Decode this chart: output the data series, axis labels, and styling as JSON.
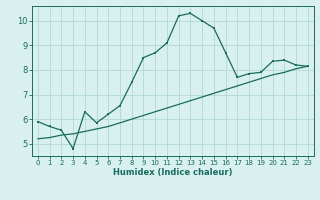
{
  "xlabel": "Humidex (Indice chaleur)",
  "bg_color": "#d8f0ee",
  "grid_color": "#b0d8d4",
  "line_color": "#1a6b60",
  "xlim": [
    -0.5,
    23.5
  ],
  "ylim": [
    4.5,
    10.6
  ],
  "xticks": [
    0,
    1,
    2,
    3,
    4,
    5,
    6,
    7,
    8,
    9,
    10,
    11,
    12,
    13,
    14,
    15,
    16,
    17,
    18,
    19,
    20,
    21,
    22,
    23
  ],
  "yticks": [
    5,
    6,
    7,
    8,
    9,
    10
  ],
  "curve1_x": [
    0,
    1,
    2,
    3,
    4,
    5,
    6,
    7,
    8,
    9,
    10,
    11,
    12,
    13,
    14,
    15,
    16,
    17,
    18,
    19,
    20,
    21,
    22,
    23
  ],
  "curve1_y": [
    5.9,
    5.7,
    5.55,
    4.8,
    6.3,
    5.85,
    6.2,
    6.55,
    7.5,
    8.5,
    8.7,
    9.1,
    10.2,
    10.3,
    10.0,
    9.7,
    8.7,
    7.7,
    7.85,
    7.9,
    8.35,
    8.4,
    8.2,
    8.15
  ],
  "curve2_x": [
    0,
    1,
    2,
    3,
    4,
    5,
    6,
    7,
    8,
    9,
    10,
    11,
    12,
    13,
    14,
    15,
    16,
    17,
    18,
    19,
    20,
    21,
    22,
    23
  ],
  "curve2_y": [
    5.2,
    5.25,
    5.35,
    5.4,
    5.5,
    5.6,
    5.7,
    5.85,
    6.0,
    6.15,
    6.3,
    6.45,
    6.6,
    6.75,
    6.9,
    7.05,
    7.2,
    7.35,
    7.5,
    7.65,
    7.8,
    7.9,
    8.05,
    8.15
  ]
}
